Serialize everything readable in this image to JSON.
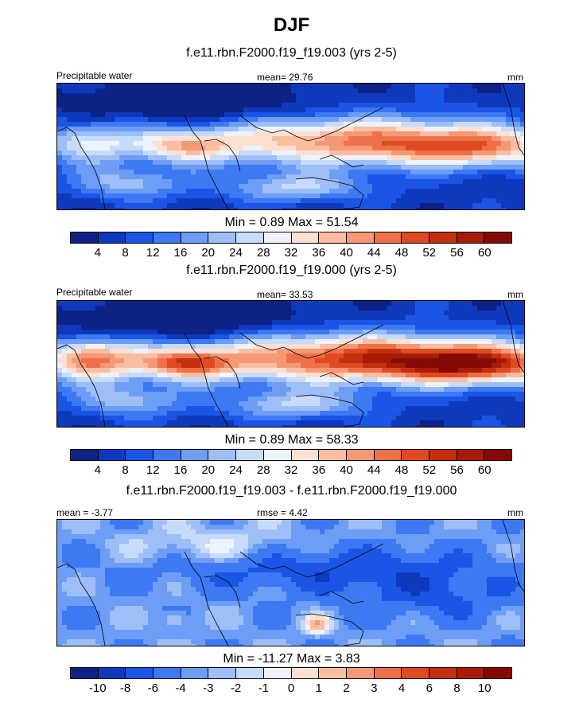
{
  "title": "DJF",
  "colors": {
    "panel_scale": [
      "#0c2287",
      "#0f39bd",
      "#1a55e6",
      "#3c79f2",
      "#6d9df4",
      "#9dbef7",
      "#c7dbfa",
      "#eef2fb",
      "#fde0d2",
      "#fbbda1",
      "#f59875",
      "#ee7048",
      "#e04a22",
      "#c42f0e",
      "#a81c07",
      "#850a05"
    ],
    "diff_scale": [
      "#0c2287",
      "#0f39bd",
      "#1a55e6",
      "#3c79f2",
      "#6d9df4",
      "#9dbef7",
      "#c7dbfa",
      "#eef2fb",
      "#fde0d2",
      "#fbbda1",
      "#f59875",
      "#ee7048",
      "#e04a22",
      "#c42f0e",
      "#a81c07",
      "#850a05"
    ]
  },
  "chart_data": [
    {
      "type": "heatmap",
      "title": "f.e11.rbn.F2000.f19_f19.003 (yrs 2-5)",
      "left_label": "Precipitable water",
      "stat_label": "mean=  29.76",
      "units": "mm",
      "min_max": "Min =   0.89 Max =  51.54",
      "mean": 29.76,
      "min": 0.89,
      "max": 51.54,
      "colorbar_levels": [
        4,
        8,
        12,
        16,
        20,
        24,
        28,
        32,
        36,
        40,
        44,
        48,
        52,
        56,
        60
      ],
      "colorbar_labels": [
        "4",
        "8",
        "12",
        "16",
        "20",
        "24",
        "28",
        "32",
        "36",
        "40",
        "44",
        "48",
        "52",
        "56",
        "60"
      ]
    },
    {
      "type": "heatmap",
      "title": "f.e11.rbn.F2000.f19_f19.000 (yrs 2-5)",
      "left_label": "Precipitable water",
      "stat_label": "mean=  33.53",
      "units": "mm",
      "min_max": "Min =   0.89 Max =  58.33",
      "mean": 33.53,
      "min": 0.89,
      "max": 58.33,
      "colorbar_levels": [
        4,
        8,
        12,
        16,
        20,
        24,
        28,
        32,
        36,
        40,
        44,
        48,
        52,
        56,
        60
      ],
      "colorbar_labels": [
        "4",
        "8",
        "12",
        "16",
        "20",
        "24",
        "28",
        "32",
        "36",
        "40",
        "44",
        "48",
        "52",
        "56",
        "60"
      ]
    },
    {
      "type": "heatmap",
      "title": "f.e11.rbn.F2000.f19_f19.003 - f.e11.rbn.F2000.f19_f19.000",
      "left_label": "mean =  -3.77",
      "stat_label": "rmse =   4.42",
      "units": "mm",
      "min_max": "Min = -11.27 Max =   3.83",
      "mean": -3.77,
      "rmse": 4.42,
      "min": -11.27,
      "max": 3.83,
      "colorbar_levels": [
        -10,
        -8,
        -6,
        -4,
        -3,
        -2,
        -1,
        0,
        1,
        2,
        3,
        4,
        6,
        8,
        10
      ],
      "colorbar_labels": [
        "-10",
        "-8",
        "-6",
        "-4",
        "-3",
        "-2",
        "-1",
        "0",
        "1",
        "2",
        "3",
        "4",
        "6",
        "8",
        "10"
      ]
    }
  ]
}
